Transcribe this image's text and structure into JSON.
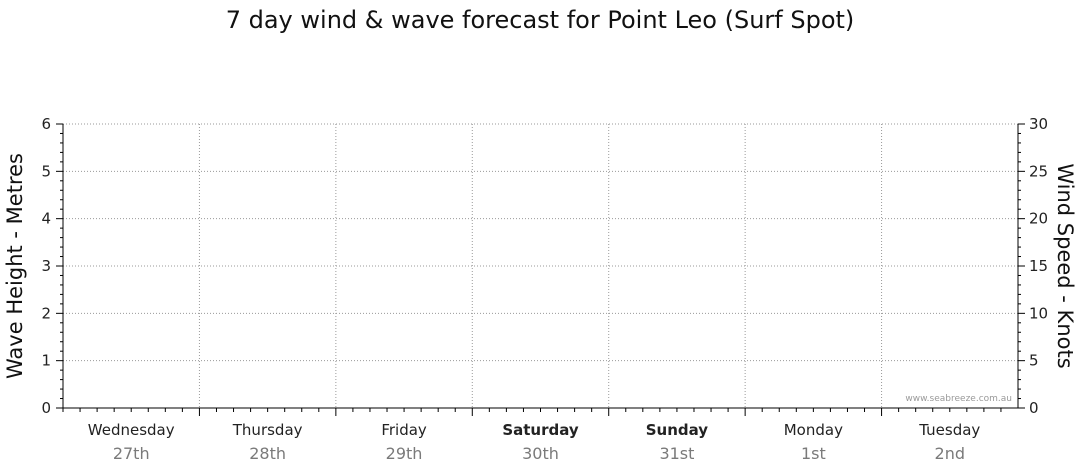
{
  "chart_data": {
    "type": "line",
    "title": "7 day wind & wave forecast for Point Leo (Surf Spot)",
    "ylabel": "Wave Height - Metres",
    "y2label": "Wind Speed - Knots",
    "ylim": [
      0,
      6
    ],
    "y2lim": [
      0,
      30
    ],
    "yticks": [
      "0",
      "1",
      "2",
      "3",
      "4",
      "5",
      "6"
    ],
    "y2ticks": [
      "0",
      "5",
      "10",
      "15",
      "20",
      "25",
      "30"
    ],
    "grid": true,
    "days": [
      {
        "name": "Wednesday",
        "date": "27th",
        "bold": false
      },
      {
        "name": "Thursday",
        "date": "28th",
        "bold": false
      },
      {
        "name": "Friday",
        "date": "29th",
        "bold": false
      },
      {
        "name": "Saturday",
        "date": "30th",
        "bold": true
      },
      {
        "name": "Sunday",
        "date": "31st",
        "bold": true
      },
      {
        "name": "Monday",
        "date": "1st",
        "bold": false
      },
      {
        "name": "Tuesday",
        "date": "2nd",
        "bold": false
      }
    ],
    "series": [],
    "watermark": "www.seabreeze.com.au"
  }
}
